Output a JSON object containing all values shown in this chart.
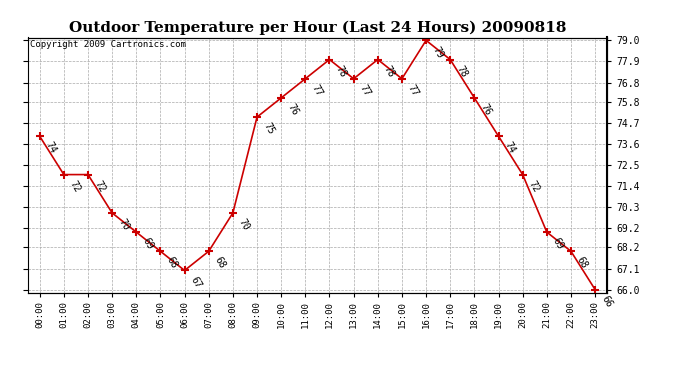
{
  "title": "Outdoor Temperature per Hour (Last 24 Hours) 20090818",
  "copyright": "Copyright 2009 Cartronics.com",
  "hours": [
    "00:00",
    "01:00",
    "02:00",
    "03:00",
    "04:00",
    "05:00",
    "06:00",
    "07:00",
    "08:00",
    "09:00",
    "10:00",
    "11:00",
    "12:00",
    "13:00",
    "14:00",
    "15:00",
    "16:00",
    "17:00",
    "18:00",
    "19:00",
    "20:00",
    "21:00",
    "22:00",
    "23:00"
  ],
  "temps": [
    74,
    72,
    72,
    70,
    69,
    68,
    67,
    68,
    70,
    75,
    76,
    77,
    78,
    77,
    78,
    77,
    79,
    78,
    76,
    74,
    72,
    69,
    68,
    66
  ],
  "line_color": "#cc0000",
  "marker": "+",
  "marker_color": "#cc0000",
  "grid_color": "#aaaaaa",
  "bg_color": "#ffffff",
  "ylim_min": 66.0,
  "ylim_max": 79.0,
  "yticks": [
    66.0,
    67.1,
    68.2,
    69.2,
    70.3,
    71.4,
    72.5,
    73.6,
    74.7,
    75.8,
    76.8,
    77.9,
    79.0
  ],
  "title_fontsize": 11,
  "label_fontsize": 7,
  "copyright_fontsize": 6.5,
  "annot_rotation": -60
}
